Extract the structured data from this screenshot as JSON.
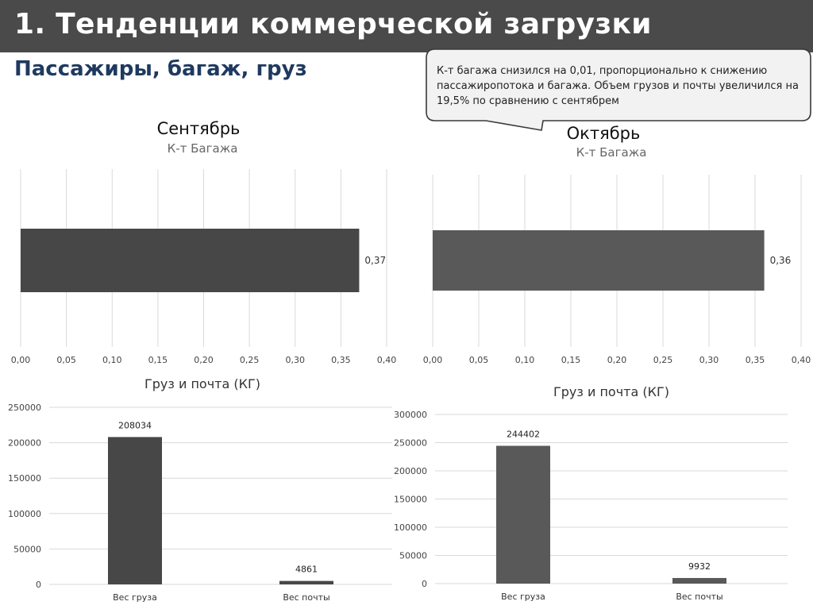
{
  "header": {
    "title": "1. Тенденции коммерческой загрузки"
  },
  "section": {
    "title": "Пассажиры, багаж, груз"
  },
  "callout": {
    "text": "К-т багажа снизился на 0,01, пропорционально к снижению пассажиропотока и багажа. Объем грузов и почты увеличился на 19,5% по сравнению с сентябрем"
  },
  "colors": {
    "header_bg": "#4a4a4a",
    "bar_dark": "#474747",
    "bar_mid": "#595959",
    "subtitle": "#1f3a5f"
  },
  "chart_data": [
    {
      "id": "sep-baggage",
      "type": "bar",
      "orientation": "horizontal",
      "title": "Сентябрь",
      "subtitle": "К-т Багажа",
      "values": [
        0.37
      ],
      "value_labels": [
        "0,37"
      ],
      "xlim": [
        0,
        0.4
      ],
      "ticks": [
        "0,00",
        "0,05",
        "0,10",
        "0,15",
        "0,20",
        "0,25",
        "0,30",
        "0,35",
        "0,40"
      ],
      "grid": true
    },
    {
      "id": "oct-baggage",
      "type": "bar",
      "orientation": "horizontal",
      "title": "Октябрь",
      "subtitle": "К-т Багажа",
      "values": [
        0.36
      ],
      "value_labels": [
        "0,36"
      ],
      "xlim": [
        0,
        0.4
      ],
      "ticks": [
        "0,00",
        "0,05",
        "0,10",
        "0,15",
        "0,20",
        "0,25",
        "0,30",
        "0,35",
        "0,40"
      ],
      "grid": true
    },
    {
      "id": "sep-cargo",
      "type": "bar",
      "orientation": "vertical",
      "title": "Груз и почта (КГ)",
      "categories": [
        "Вес груза",
        "Вес почты"
      ],
      "values": [
        208034,
        4861
      ],
      "value_labels": [
        "208034",
        "4861"
      ],
      "ylim": [
        0,
        250000
      ],
      "ticks": [
        "0",
        "50000",
        "100000",
        "150000",
        "200000",
        "250000"
      ],
      "grid": true
    },
    {
      "id": "oct-cargo",
      "type": "bar",
      "orientation": "vertical",
      "title": "Груз и почта (КГ)",
      "categories": [
        "Вес груза",
        "Вес почты"
      ],
      "values": [
        244402,
        9932
      ],
      "value_labels": [
        "244402",
        "9932"
      ],
      "ylim": [
        0,
        300000
      ],
      "ticks": [
        "0",
        "50000",
        "100000",
        "150000",
        "200000",
        "250000",
        "300000"
      ],
      "grid": true
    }
  ]
}
